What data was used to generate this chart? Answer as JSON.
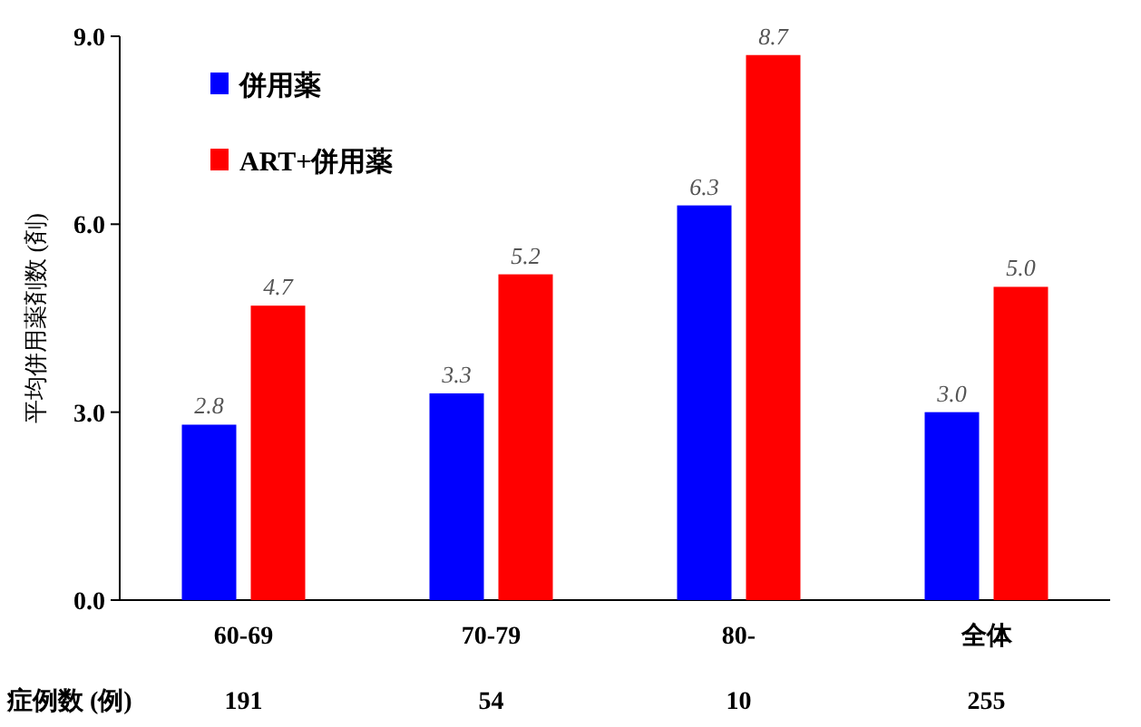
{
  "chart_data": {
    "type": "bar",
    "ylabel": "平均併用薬剤数 (剤)",
    "categories": [
      "60-69",
      "70-79",
      "80-",
      "全体"
    ],
    "series": [
      {
        "name": "併用薬",
        "color": "#0000ff",
        "values": [
          2.8,
          3.3,
          6.3,
          3.0
        ],
        "value_labels": [
          "2.8",
          "3.3",
          "6.3",
          "3.0"
        ]
      },
      {
        "name": "ART+併用薬",
        "color": "#ff0000",
        "values": [
          4.7,
          5.2,
          8.7,
          5.0
        ],
        "value_labels": [
          "4.7",
          "5.2",
          "8.7",
          "5.0"
        ]
      }
    ],
    "ylim": [
      0,
      9
    ],
    "yticks": [
      {
        "value": 0,
        "label": "0.0"
      },
      {
        "value": 3,
        "label": "3.0"
      },
      {
        "value": 6,
        "label": "6.0"
      },
      {
        "value": 9,
        "label": "9.0"
      }
    ],
    "legend": "top left",
    "annotations": [
      "症例数 (例)",
      "191",
      "54",
      "10",
      "255"
    ]
  }
}
